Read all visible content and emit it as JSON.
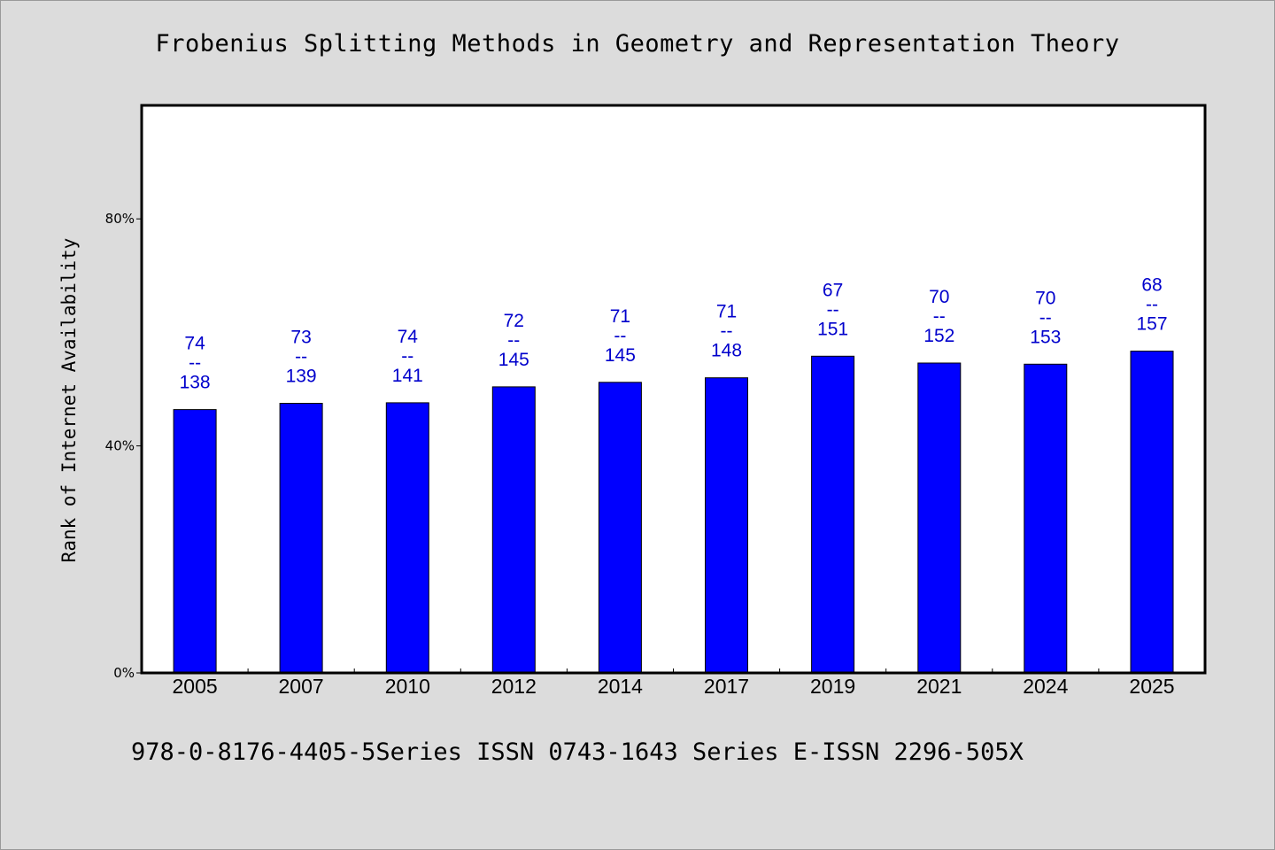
{
  "chart_data": {
    "type": "bar",
    "title": "Frobenius Splitting Methods in Geometry and Representation Theory",
    "xlabel": "",
    "ylabel": "Rank of Internet Availability",
    "footer": "978-0-8176-4405-5Series ISSN 0743-1643 Series E-ISSN 2296-505X",
    "ylim": [
      0,
      100
    ],
    "yticks": [
      0,
      40,
      80
    ],
    "ytick_labels": [
      "0%",
      "40%",
      "80%"
    ],
    "categories": [
      "2005",
      "2007",
      "2010",
      "2012",
      "2014",
      "2017",
      "2019",
      "2021",
      "2024",
      "2025"
    ],
    "values": [
      46.4,
      47.5,
      47.6,
      50.4,
      51.2,
      52.0,
      55.8,
      54.6,
      54.4,
      56.7
    ],
    "annotations": [
      {
        "rank": "74",
        "sep": "--",
        "total": "138"
      },
      {
        "rank": "73",
        "sep": "--",
        "total": "139"
      },
      {
        "rank": "74",
        "sep": "--",
        "total": "141"
      },
      {
        "rank": "72",
        "sep": "--",
        "total": "145"
      },
      {
        "rank": "71",
        "sep": "--",
        "total": "145"
      },
      {
        "rank": "71",
        "sep": "--",
        "total": "148"
      },
      {
        "rank": "67",
        "sep": "--",
        "total": "151"
      },
      {
        "rank": "70",
        "sep": "--",
        "total": "152"
      },
      {
        "rank": "70",
        "sep": "--",
        "total": "153"
      },
      {
        "rank": "68",
        "sep": "--",
        "total": "157"
      }
    ],
    "bar_color": "#0000ff",
    "label_color": "#0000cc",
    "grid": false
  }
}
